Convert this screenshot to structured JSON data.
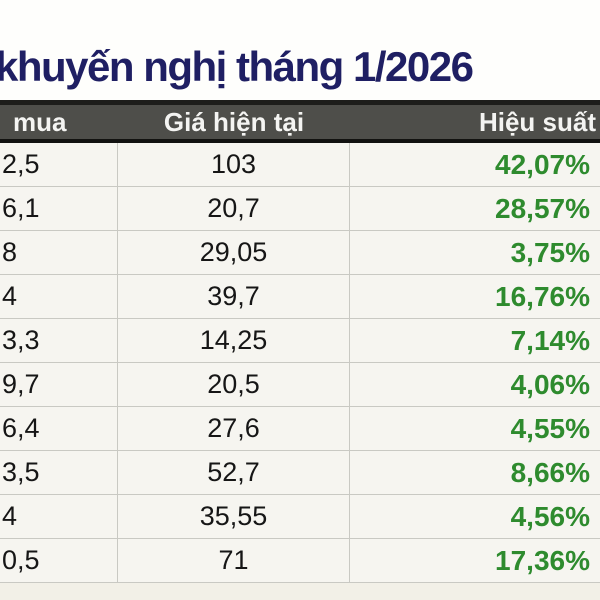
{
  "title": "khuyến nghị tháng 1/2026",
  "table": {
    "columns": [
      {
        "label": "mua"
      },
      {
        "label": "Giá hiện tại"
      },
      {
        "label": "Hiệu suất"
      }
    ],
    "rows": [
      {
        "buy": "2,5",
        "current": "103",
        "performance": "42,07%"
      },
      {
        "buy": "6,1",
        "current": "20,7",
        "performance": "28,57%"
      },
      {
        "buy": "8",
        "current": "29,05",
        "performance": "3,75%"
      },
      {
        "buy": "4",
        "current": "39,7",
        "performance": "16,76%"
      },
      {
        "buy": "3,3",
        "current": "14,25",
        "performance": "7,14%"
      },
      {
        "buy": "9,7",
        "current": "20,5",
        "performance": "4,06%"
      },
      {
        "buy": "6,4",
        "current": "27,6",
        "performance": "4,55%"
      },
      {
        "buy": "3,5",
        "current": "52,7",
        "performance": "8,66%"
      },
      {
        "buy": "4",
        "current": "35,55",
        "performance": "4,56%"
      },
      {
        "buy": "0,5",
        "current": "71",
        "performance": "17,36%"
      }
    ]
  },
  "colors": {
    "title_navy": "#1f1f63",
    "header_background": "#4e4e4a",
    "header_text": "#f4f4f2",
    "row_background": "#f6f5f0",
    "performance_green": "#2e8b2e",
    "value_black": "#161616"
  }
}
